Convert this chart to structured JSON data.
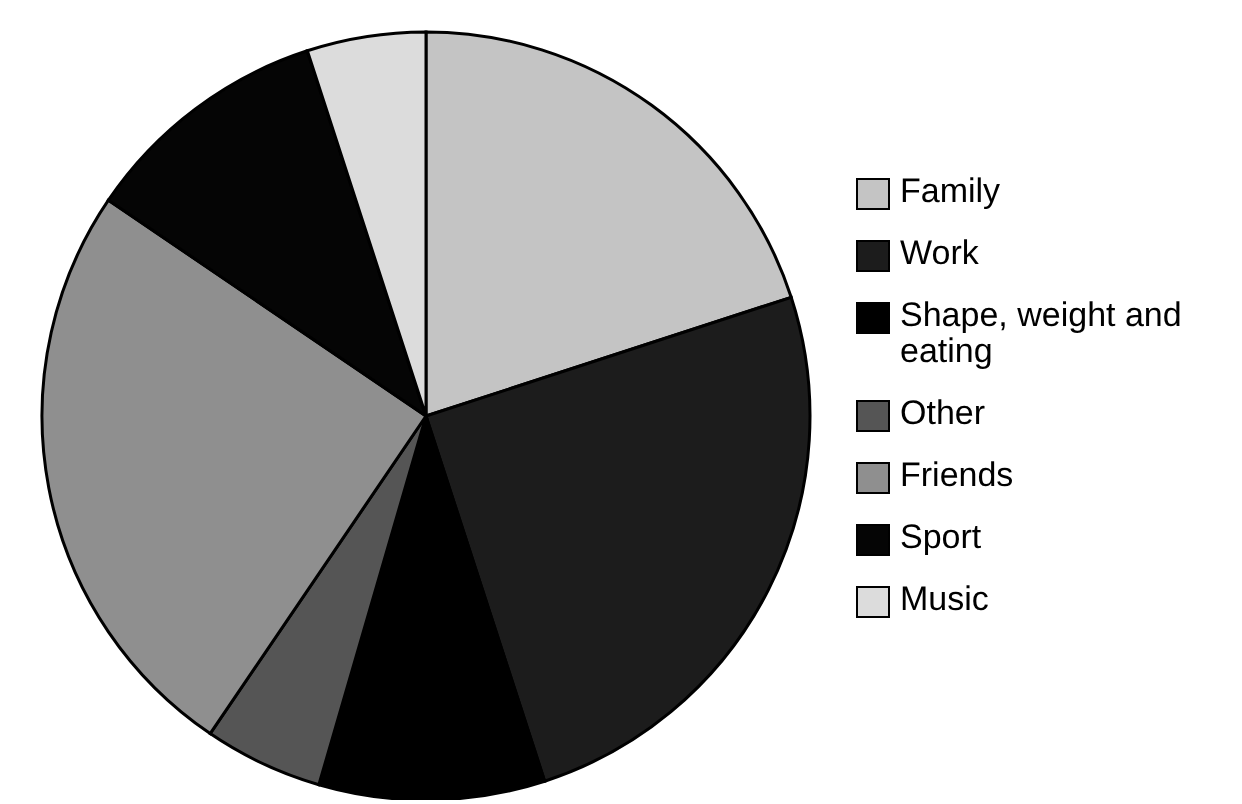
{
  "chart_data": {
    "type": "pie",
    "categories": [
      "Family",
      "Work",
      "Shape, weight and eating",
      "Other",
      "Friends",
      "Sport",
      "Music"
    ],
    "values": [
      20,
      25,
      9.5,
      5,
      25,
      10.5,
      5
    ],
    "colors": [
      "#c4c4c4",
      "#1c1c1c",
      "#000000",
      "#555555",
      "#8f8f8f",
      "#050505",
      "#dcdcdc"
    ],
    "legend": "right"
  }
}
